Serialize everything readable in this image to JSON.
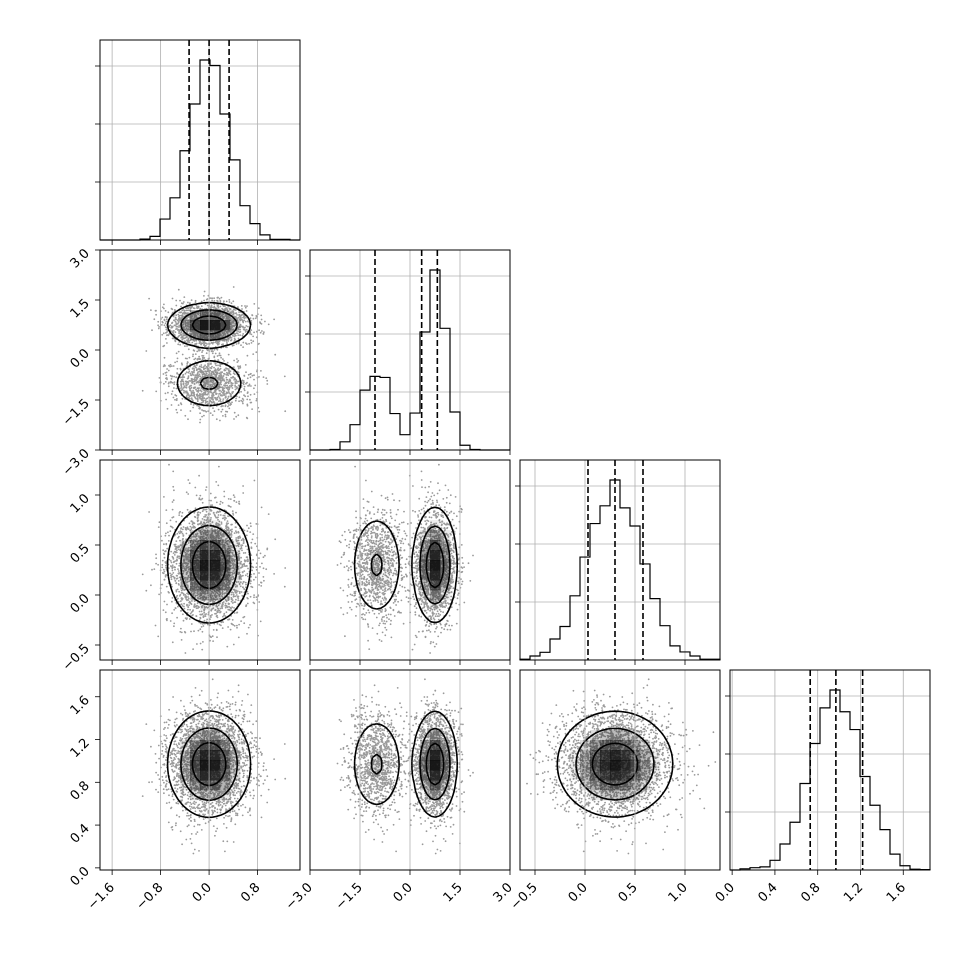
{
  "chart_data": {
    "type": "corner",
    "parameters": [
      {
        "index": 0,
        "mean": 0.0,
        "sd": 0.33,
        "range": [
          -1.8,
          1.5
        ],
        "ticks": [
          -1.6,
          -0.8,
          0.0,
          0.8
        ],
        "tick_labels": [
          "−1.6",
          "−0.8",
          "0.0",
          "0.8"
        ],
        "quantiles": [
          -0.33,
          0.0,
          0.33
        ]
      },
      {
        "index": 1,
        "bimodal": true,
        "modes": [
          {
            "mean": -1.0,
            "sd": 0.42,
            "weight": 0.35
          },
          {
            "mean": 0.75,
            "sd": 0.32,
            "weight": 0.65
          }
        ],
        "range": [
          -3.0,
          3.0
        ],
        "ticks": [
          -3.0,
          -1.5,
          0.0,
          1.5,
          3.0
        ],
        "tick_labels": [
          "−3.0",
          "−1.5",
          "0.0",
          "1.5",
          "3.0"
        ],
        "quantiles": [
          -1.05,
          0.35,
          0.82
        ]
      },
      {
        "index": 2,
        "mean": 0.3,
        "sd": 0.28,
        "range": [
          -0.65,
          1.35
        ],
        "ticks": [
          -0.5,
          0.0,
          0.5,
          1.0
        ],
        "tick_labels": [
          "−0.5",
          "0.0",
          "0.5",
          "1.0"
        ],
        "quantiles": [
          0.03,
          0.3,
          0.58
        ]
      },
      {
        "index": 3,
        "mean": 0.97,
        "sd": 0.24,
        "range": [
          -0.02,
          1.85
        ],
        "ticks": [
          0.0,
          0.4,
          0.8,
          1.2,
          1.6
        ],
        "tick_labels": [
          "0.0",
          "0.4",
          "0.8",
          "1.2",
          "1.6"
        ],
        "quantiles": [
          0.73,
          0.97,
          1.22
        ]
      }
    ],
    "histogram_bins": 20,
    "contour_levels": 3,
    "grid": true,
    "colors": {
      "lines": "#000000",
      "points": "#9a9a9a",
      "density": "#000000",
      "grid": "#b0b0b0"
    }
  }
}
